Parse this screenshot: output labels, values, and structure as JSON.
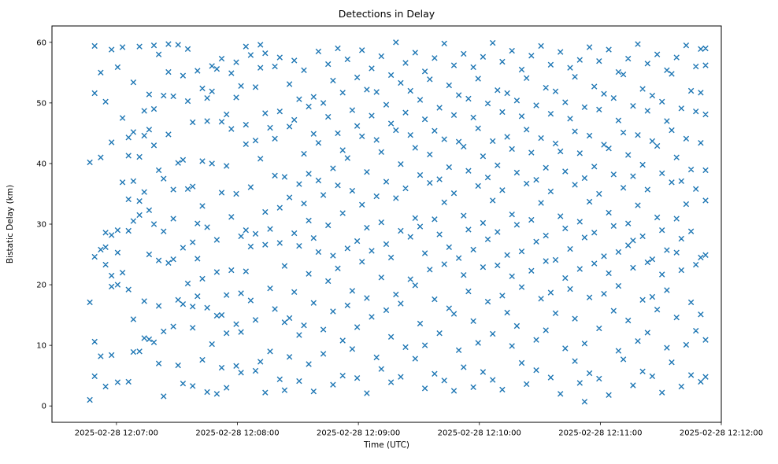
{
  "chart_data": {
    "type": "scatter",
    "title": "Detections in Delay",
    "xlabel": "Time (UTC)",
    "ylabel": "Bistatic Delay (km)",
    "marker": "x",
    "marker_color": "#1f77b4",
    "background": "#ffffff",
    "grid": false,
    "legend": "none",
    "x_unit": "minutes after 2025-02-28 12:06:00 UTC",
    "x_range_minutes": [
      0.467,
      6.0
    ],
    "y_range": [
      -2.7,
      62.7
    ],
    "y_ticks": [
      0,
      10,
      20,
      30,
      40,
      50,
      60
    ],
    "x_ticks": [
      {
        "minutes": 1,
        "label": "2025-02-28 12:07:00"
      },
      {
        "minutes": 2,
        "label": "2025-02-28 12:08:00"
      },
      {
        "minutes": 3,
        "label": "2025-02-28 12:09:00"
      },
      {
        "minutes": 4,
        "label": "2025-02-28 12:10:00"
      },
      {
        "minutes": 5,
        "label": "2025-02-28 12:11:00"
      },
      {
        "minutes": 6,
        "label": "2025-02-28 12:12:00"
      }
    ],
    "columns": [
      {
        "t": 0.78,
        "y": [
          17.1,
          40.2,
          1.0
        ]
      },
      {
        "t": 0.82,
        "y": [
          59.4,
          51.6,
          24.6,
          10.6,
          4.9
        ]
      },
      {
        "t": 0.87,
        "y": [
          55.0,
          41.0,
          25.8,
          8.2
        ]
      },
      {
        "t": 0.91,
        "y": [
          50.2,
          28.6,
          26.2,
          23.3,
          3.2
        ]
      },
      {
        "t": 0.96,
        "y": [
          58.8,
          43.5,
          28.2,
          21.5,
          19.7,
          8.4
        ]
      },
      {
        "t": 1.01,
        "y": [
          55.9,
          29.0,
          25.3,
          20.0,
          3.9
        ]
      },
      {
        "t": 1.05,
        "y": [
          59.2,
          47.5,
          36.9,
          22.0
        ]
      },
      {
        "t": 1.1,
        "y": [
          44.3,
          41.3,
          34.1,
          28.9,
          19.2,
          4.0
        ]
      },
      {
        "t": 1.14,
        "y": [
          53.4,
          45.2,
          37.1,
          30.5,
          14.3,
          8.9
        ]
      },
      {
        "t": 1.19,
        "y": [
          59.3,
          41.1,
          33.8,
          31.5,
          9.0
        ]
      },
      {
        "t": 1.23,
        "y": [
          48.7,
          44.6,
          35.3,
          17.3,
          11.2
        ]
      },
      {
        "t": 1.27,
        "y": [
          51.4,
          45.6,
          32.3,
          25.0,
          11.0
        ]
      },
      {
        "t": 1.31,
        "y": [
          59.5,
          49.0,
          43.0,
          30.0,
          10.5
        ]
      },
      {
        "t": 1.35,
        "y": [
          58.0,
          38.9,
          24.0,
          16.5,
          7.0
        ]
      },
      {
        "t": 1.39,
        "y": [
          51.2,
          37.5,
          28.8,
          12.3,
          1.6
        ]
      },
      {
        "t": 1.43,
        "y": [
          59.7,
          55.1,
          44.8,
          23.6
        ]
      },
      {
        "t": 1.47,
        "y": [
          51.1,
          35.7,
          30.9,
          24.2,
          13.1
        ]
      },
      {
        "t": 1.51,
        "y": [
          59.6,
          40.1,
          17.5,
          6.7
        ]
      },
      {
        "t": 1.55,
        "y": [
          54.5,
          40.6,
          26.1,
          16.8,
          3.7
        ]
      },
      {
        "t": 1.59,
        "y": [
          58.9,
          50.3,
          35.8,
          20.2
        ]
      },
      {
        "t": 1.63,
        "y": [
          46.8,
          36.2,
          27.0,
          16.4,
          12.9,
          3.3
        ]
      },
      {
        "t": 1.67,
        "y": [
          55.3,
          30.1,
          24.3,
          18.1
        ]
      },
      {
        "t": 1.71,
        "y": [
          52.4,
          40.4,
          33.0,
          21.0,
          7.6
        ]
      },
      {
        "t": 1.75,
        "y": [
          50.8,
          47.0,
          29.5,
          16.2,
          2.3
        ]
      },
      {
        "t": 1.79,
        "y": [
          56.1,
          51.9,
          40.0,
          10.2
        ]
      },
      {
        "t": 1.83,
        "y": [
          55.6,
          27.4,
          22.1,
          14.9,
          2.0
        ]
      },
      {
        "t": 1.87,
        "y": [
          57.3,
          46.9,
          35.2,
          15.0,
          6.3
        ]
      },
      {
        "t": 1.91,
        "y": [
          48.1,
          39.6,
          18.3,
          12.0,
          3.0
        ]
      },
      {
        "t": 1.95,
        "y": [
          54.9,
          45.7,
          31.2,
          22.4
        ]
      },
      {
        "t": 1.99,
        "y": [
          56.7,
          50.9,
          35.0,
          13.5,
          6.6
        ]
      },
      {
        "t": 2.03,
        "y": [
          52.8,
          28.0,
          18.6,
          12.2,
          5.5
        ]
      },
      {
        "t": 2.07,
        "y": [
          59.3,
          46.4,
          43.2,
          29.0,
          22.2
        ]
      },
      {
        "t": 2.11,
        "y": [
          57.9,
          36.1,
          26.3,
          17.4
        ]
      },
      {
        "t": 2.15,
        "y": [
          52.6,
          43.8,
          28.4,
          14.2,
          5.8
        ]
      },
      {
        "t": 2.19,
        "y": [
          59.6,
          55.8,
          40.8,
          7.3
        ]
      },
      {
        "t": 2.23,
        "y": [
          58.2,
          48.3,
          32.0,
          26.6,
          2.2
        ]
      },
      {
        "t": 2.27,
        "y": [
          45.9,
          29.2,
          19.4,
          9.0
        ]
      },
      {
        "t": 2.31,
        "y": [
          56.0,
          44.1,
          38.0,
          16.0
        ]
      },
      {
        "t": 2.35,
        "y": [
          57.5,
          48.6,
          32.7,
          26.9,
          4.4
        ]
      },
      {
        "t": 2.39,
        "y": [
          37.8,
          23.1,
          13.8,
          2.6
        ]
      },
      {
        "t": 2.43,
        "y": [
          53.1,
          46.1,
          34.4,
          14.5,
          8.1
        ]
      },
      {
        "t": 2.47,
        "y": [
          57.0,
          47.2,
          28.5,
          18.8
        ]
      },
      {
        "t": 2.51,
        "y": [
          50.6,
          36.6,
          26.4,
          11.7,
          4.1
        ]
      },
      {
        "t": 2.55,
        "y": [
          55.4,
          41.6,
          33.4,
          13.3
        ]
      },
      {
        "t": 2.59,
        "y": [
          49.4,
          38.3,
          30.6,
          21.8,
          6.9
        ]
      },
      {
        "t": 2.63,
        "y": [
          51.0,
          44.9,
          27.7,
          17.0,
          2.4
        ]
      },
      {
        "t": 2.67,
        "y": [
          58.5,
          43.4,
          37.2,
          25.4
        ]
      },
      {
        "t": 2.71,
        "y": [
          50.0,
          34.8,
          12.6,
          8.6
        ]
      },
      {
        "t": 2.75,
        "y": [
          56.4,
          47.7,
          29.8,
          20.6
        ]
      },
      {
        "t": 2.79,
        "y": [
          53.7,
          39.2,
          24.8,
          15.6,
          3.5
        ]
      },
      {
        "t": 2.83,
        "y": [
          59.0,
          45.0,
          36.4,
          22.7
        ]
      },
      {
        "t": 2.87,
        "y": [
          51.7,
          42.2,
          31.8,
          10.8,
          5.0
        ]
      },
      {
        "t": 2.91,
        "y": [
          57.2,
          40.9,
          26.0,
          16.6
        ]
      },
      {
        "t": 2.95,
        "y": [
          48.8,
          35.5,
          19.0,
          9.4
        ]
      },
      {
        "t": 2.99,
        "y": [
          54.2,
          46.2,
          27.2,
          13.0,
          4.6
        ]
      },
      {
        "t": 3.03,
        "y": [
          58.7,
          44.5,
          33.2,
          23.8
        ]
      },
      {
        "t": 3.07,
        "y": [
          52.2,
          38.6,
          29.4,
          17.8,
          2.1
        ]
      },
      {
        "t": 3.11,
        "y": [
          55.7,
          47.9,
          25.6,
          14.7
        ]
      },
      {
        "t": 3.15,
        "y": [
          51.8,
          43.9,
          34.6,
          8.0
        ]
      },
      {
        "t": 3.19,
        "y": [
          57.7,
          41.9,
          30.3,
          21.2,
          6.1
        ]
      },
      {
        "t": 3.23,
        "y": [
          49.7,
          37.0,
          26.7,
          15.8
        ]
      },
      {
        "t": 3.27,
        "y": [
          54.6,
          46.6,
          24.5,
          11.4,
          3.9
        ]
      },
      {
        "t": 3.31,
        "y": [
          60.0,
          45.5,
          34.3,
          18.4
        ]
      },
      {
        "t": 3.35,
        "y": [
          53.3,
          39.9,
          28.9,
          16.9,
          4.8
        ]
      },
      {
        "t": 3.39,
        "y": [
          56.6,
          48.4,
          35.9,
          9.7
        ]
      },
      {
        "t": 3.43,
        "y": [
          52.0,
          44.7,
          27.9,
          20.9
        ]
      },
      {
        "t": 3.47,
        "y": [
          58.3,
          42.6,
          31.0,
          19.9,
          7.8
        ]
      },
      {
        "t": 3.51,
        "y": [
          50.5,
          38.1,
          29.6,
          13.6
        ]
      },
      {
        "t": 3.55,
        "y": [
          55.2,
          47.3,
          25.2,
          10.0,
          2.9
        ]
      },
      {
        "t": 3.59,
        "y": [
          53.9,
          41.5,
          36.8,
          22.5
        ]
      },
      {
        "t": 3.63,
        "y": [
          57.4,
          45.4,
          30.8,
          17.6,
          5.3
        ]
      },
      {
        "t": 3.67,
        "y": [
          49.2,
          37.4,
          28.3,
          12.0
        ]
      },
      {
        "t": 3.71,
        "y": [
          59.8,
          44.0,
          33.6,
          23.4,
          4.2
        ]
      },
      {
        "t": 3.75,
        "y": [
          52.9,
          39.4,
          26.2,
          16.1
        ]
      },
      {
        "t": 3.79,
        "y": [
          56.2,
          48.0,
          35.1,
          15.2,
          2.5
        ]
      },
      {
        "t": 3.83,
        "y": [
          51.3,
          43.6,
          24.4,
          9.2
        ]
      },
      {
        "t": 3.87,
        "y": [
          58.1,
          42.8,
          31.4,
          21.6,
          6.4
        ]
      },
      {
        "t": 3.91,
        "y": [
          50.7,
          38.8,
          29.1,
          18.9
        ]
      },
      {
        "t": 3.95,
        "y": [
          55.9,
          47.6,
          25.8,
          14.0,
          3.1
        ]
      },
      {
        "t": 3.99,
        "y": [
          54.0,
          45.8,
          36.3,
          10.4
        ]
      },
      {
        "t": 4.03,
        "y": [
          57.6,
          41.2,
          30.2,
          22.9,
          5.6
        ]
      },
      {
        "t": 4.07,
        "y": [
          49.9,
          37.7,
          27.5,
          17.2
        ]
      },
      {
        "t": 4.11,
        "y": [
          59.9,
          43.7,
          33.9,
          11.9,
          4.3
        ]
      },
      {
        "t": 4.15,
        "y": [
          52.1,
          39.7,
          28.7,
          23.2
        ]
      },
      {
        "t": 4.19,
        "y": [
          56.8,
          48.5,
          35.6,
          18.2,
          2.7
        ]
      },
      {
        "t": 4.23,
        "y": [
          51.6,
          44.4,
          24.9,
          15.4
        ]
      },
      {
        "t": 4.27,
        "y": [
          58.6,
          42.4,
          31.6,
          21.4,
          9.9
        ]
      },
      {
        "t": 4.31,
        "y": [
          50.4,
          38.5,
          29.9,
          13.2
        ]
      },
      {
        "t": 4.35,
        "y": [
          55.5,
          47.8,
          25.5,
          19.6,
          7.1
        ]
      },
      {
        "t": 4.39,
        "y": [
          54.1,
          45.6,
          36.7,
          3.6
        ]
      },
      {
        "t": 4.43,
        "y": [
          57.8,
          41.8,
          30.7,
          22.3
        ]
      },
      {
        "t": 4.47,
        "y": [
          49.6,
          37.3,
          27.1,
          10.9,
          5.9
        ]
      },
      {
        "t": 4.51,
        "y": [
          59.4,
          44.2,
          33.5,
          17.7
        ]
      },
      {
        "t": 4.55,
        "y": [
          52.5,
          39.3,
          28.1,
          23.9,
          12.5
        ]
      },
      {
        "t": 4.59,
        "y": [
          56.3,
          48.2,
          35.4,
          18.7,
          4.7
        ]
      },
      {
        "t": 4.63,
        "y": [
          51.9,
          43.3,
          24.1,
          15.3
        ]
      },
      {
        "t": 4.67,
        "y": [
          58.4,
          42.0,
          31.3,
          2.0
        ]
      },
      {
        "t": 4.71,
        "y": [
          50.1,
          38.7,
          29.3,
          21.1,
          9.5
        ]
      },
      {
        "t": 4.75,
        "y": [
          55.8,
          47.4,
          25.9,
          19.3
        ]
      },
      {
        "t": 4.79,
        "y": [
          54.3,
          45.3,
          36.5,
          14.4,
          7.4
        ]
      },
      {
        "t": 4.83,
        "y": [
          57.1,
          41.7,
          30.4,
          22.6,
          3.8
        ]
      },
      {
        "t": 4.87,
        "y": [
          49.3,
          37.6,
          27.8,
          10.3,
          0.7
        ]
      },
      {
        "t": 4.91,
        "y": [
          59.2,
          44.6,
          33.7,
          17.9,
          5.4
        ]
      },
      {
        "t": 4.95,
        "y": [
          52.7,
          39.5,
          28.6,
          23.5
        ]
      },
      {
        "t": 4.99,
        "y": [
          56.9,
          48.9,
          35.0,
          12.8,
          4.5
        ]
      },
      {
        "t": 5.03,
        "y": [
          51.5,
          43.1,
          24.7,
          18.5
        ]
      },
      {
        "t": 5.07,
        "y": [
          58.8,
          42.5,
          31.9,
          21.9,
          1.8
        ]
      },
      {
        "t": 5.11,
        "y": [
          50.8,
          38.2,
          29.7,
          15.7
        ]
      },
      {
        "t": 5.15,
        "y": [
          55.1,
          47.1,
          25.4,
          19.8,
          9.1
        ]
      },
      {
        "t": 5.19,
        "y": [
          54.7,
          45.1,
          36.0,
          7.7
        ]
      },
      {
        "t": 5.23,
        "y": [
          57.3,
          41.4,
          30.1,
          26.5,
          14.1
        ]
      },
      {
        "t": 5.27,
        "y": [
          49.5,
          37.9,
          27.3,
          22.8,
          3.4
        ]
      },
      {
        "t": 5.31,
        "y": [
          59.7,
          44.7,
          33.1,
          10.7
        ]
      },
      {
        "t": 5.35,
        "y": [
          52.3,
          39.8,
          28.0,
          17.5,
          5.7
        ]
      },
      {
        "t": 5.39,
        "y": [
          56.5,
          48.7,
          35.7,
          23.7,
          12.1
        ]
      },
      {
        "t": 5.43,
        "y": [
          51.2,
          43.7,
          24.2,
          18.0,
          4.9
        ]
      },
      {
        "t": 5.47,
        "y": [
          58.0,
          42.9,
          31.1,
          15.9
        ]
      },
      {
        "t": 5.51,
        "y": [
          50.2,
          38.4,
          29.0,
          21.7,
          2.2
        ]
      },
      {
        "t": 5.55,
        "y": [
          55.4,
          47.0,
          25.7,
          19.1,
          9.6
        ]
      },
      {
        "t": 5.59,
        "y": [
          54.8,
          45.5,
          36.9,
          7.2
        ]
      },
      {
        "t": 5.63,
        "y": [
          57.5,
          41.0,
          30.9,
          25.3,
          14.6
        ]
      },
      {
        "t": 5.67,
        "y": [
          49.1,
          37.1,
          27.6,
          22.4,
          3.2
        ]
      },
      {
        "t": 5.71,
        "y": [
          59.5,
          44.1,
          33.3,
          10.1
        ]
      },
      {
        "t": 5.75,
        "y": [
          52.0,
          39.0,
          28.8,
          17.1,
          5.1
        ]
      },
      {
        "t": 5.79,
        "y": [
          56.0,
          48.6,
          35.8,
          23.3,
          12.4
        ]
      },
      {
        "t": 5.83,
        "y": [
          58.9,
          51.7,
          43.4,
          24.5,
          15.1,
          4.0
        ]
      },
      {
        "t": 5.87,
        "y": [
          59.0,
          56.2,
          48.1,
          38.9,
          33.9,
          24.9,
          10.9,
          4.8
        ]
      }
    ]
  }
}
